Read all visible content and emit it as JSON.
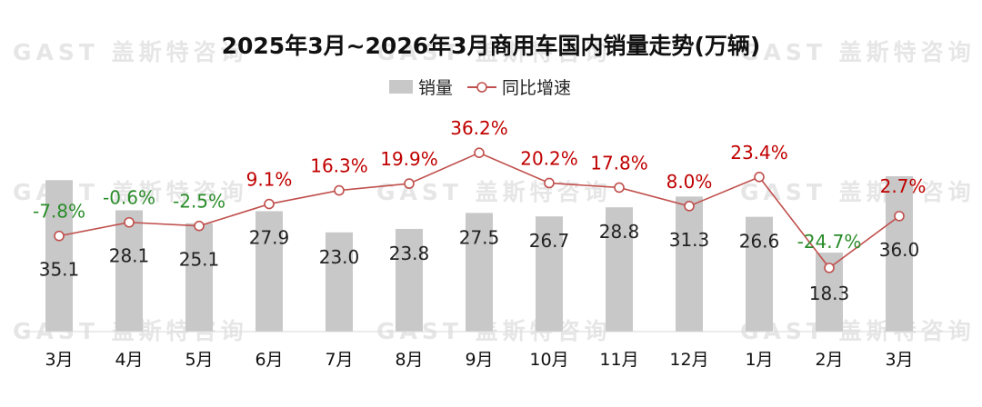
{
  "watermark": "GAST 盖斯特咨询",
  "colors": {
    "bar": "#c8c8c8",
    "line": "#c0504d",
    "positive": "#c00000",
    "negative": "#2a8c2a"
  },
  "legend": {
    "bar_label": "销量",
    "line_label": "同比增速"
  },
  "chart_data": {
    "type": "bar",
    "title": "2025年3月~2026年3月商用车国内销量走势(万辆)",
    "categories": [
      "3月",
      "4月",
      "5月",
      "6月",
      "7月",
      "8月",
      "9月",
      "10月",
      "11月",
      "12月",
      "1月",
      "2月",
      "3月"
    ],
    "series": [
      {
        "name": "销量",
        "type": "bar",
        "values": [
          35.1,
          28.1,
          25.1,
          27.9,
          23.0,
          23.8,
          27.5,
          26.7,
          28.8,
          31.3,
          26.6,
          18.3,
          36.0
        ]
      },
      {
        "name": "同比增速",
        "type": "line",
        "values": [
          -7.8,
          -0.6,
          -2.5,
          9.1,
          16.3,
          19.9,
          36.2,
          20.2,
          17.8,
          8.0,
          23.4,
          -24.7,
          2.7
        ]
      }
    ],
    "value_labels": [
      "35.1",
      "28.1",
      "25.1",
      "27.9",
      "23.0",
      "23.8",
      "27.5",
      "26.7",
      "28.8",
      "31.3",
      "26.6",
      "18.3",
      "36.0"
    ],
    "rate_labels": [
      "-7.8%",
      "-0.6%",
      "-2.5%",
      "9.1%",
      "16.3%",
      "19.9%",
      "36.2%",
      "20.2%",
      "17.8%",
      "8.0%",
      "23.4%",
      "-24.7%",
      "2.7%"
    ],
    "legend_position": "top-center",
    "grid": false
  }
}
